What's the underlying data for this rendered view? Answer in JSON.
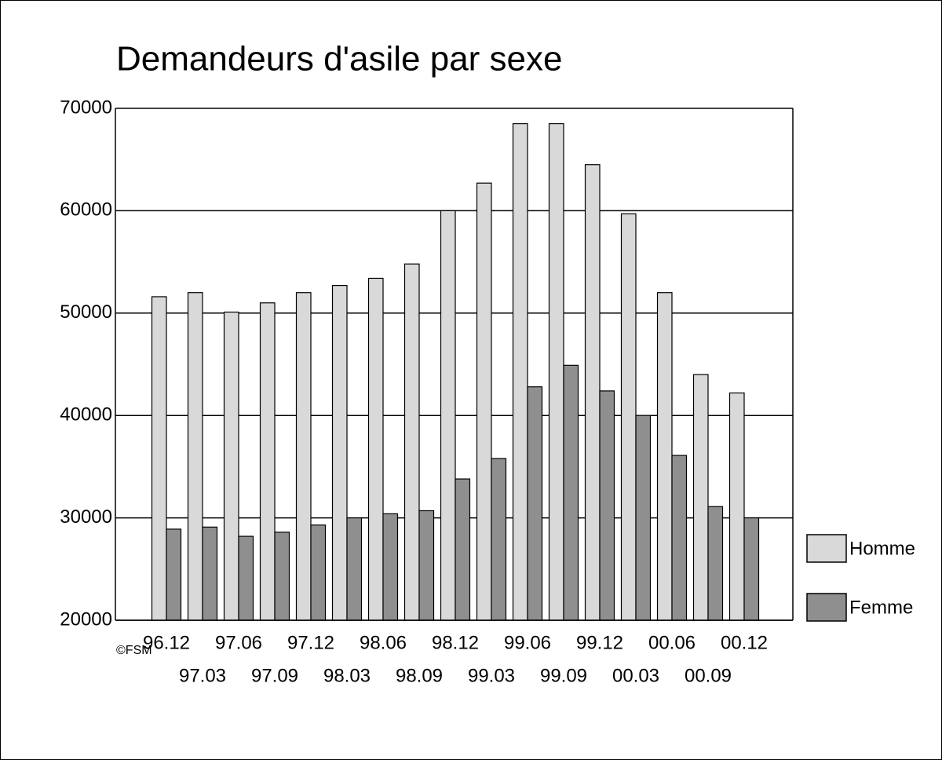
{
  "chart_data": {
    "type": "bar",
    "title": "Demandeurs d'asile par sexe",
    "categories": [
      "96.12",
      "97.03",
      "97.06",
      "97.09",
      "97.12",
      "98.03",
      "98.06",
      "98.09",
      "98.12",
      "99.03",
      "99.06",
      "99.09",
      "99.12",
      "00.03",
      "00.06",
      "00.09",
      "00.12"
    ],
    "series": [
      {
        "name": "Homme",
        "color": "#d9d9d9",
        "values": [
          51600,
          52000,
          50100,
          51000,
          52000,
          52700,
          53400,
          54800,
          60000,
          62700,
          68500,
          68500,
          64500,
          59700,
          52000,
          44000,
          42200
        ]
      },
      {
        "name": "Femme",
        "color": "#8f8f8f",
        "values": [
          28900,
          29100,
          28200,
          28600,
          29300,
          30000,
          30400,
          30700,
          33800,
          35800,
          42800,
          44900,
          42400,
          40000,
          36100,
          31100,
          30000
        ]
      }
    ],
    "ylim": [
      20000,
      70000
    ],
    "yticks": [
      20000,
      30000,
      40000,
      50000,
      60000,
      70000
    ],
    "grid": true,
    "legend": "right",
    "footnote": "©FSM"
  }
}
